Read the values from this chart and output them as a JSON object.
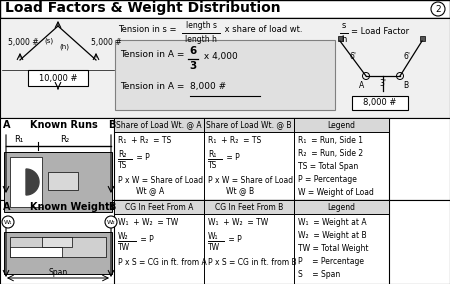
{
  "title": "Load Factors & Weight Distribution",
  "page_num": "2",
  "top_section": {
    "sling_label1": "5,000 #",
    "sling_label2": "5,000 #",
    "sling_s": "(s)",
    "sling_h": "(h)",
    "load_label": "10,000 #",
    "formula1_pre": "Tension in s = ",
    "formula1_num": "length s",
    "formula1_den": "length h",
    "formula1_post": " x share of load wt.",
    "lf_num": "s",
    "lf_den": "h",
    "lf_eq": "= Load Factor",
    "ten_a_pre": "Tension in A = ",
    "ten_a_num": "6",
    "ten_a_den": "3",
    "ten_a_post": " x 4,000",
    "ten_a_result": "Tension in A = ",
    "ten_a_result2": "8,000 #",
    "dist_6a": "6'",
    "dist_3": "3'",
    "dist_6b": "6'",
    "pt_a": "A",
    "pt_b": "B",
    "box_8000": "8,000 #"
  },
  "known_runs": {
    "label": "Known Runs",
    "pt_a": "A",
    "pt_b": "B",
    "col1_hdr": "Share of Load Wt. @ A",
    "col2_hdr": "Share of Load Wt. @ B",
    "col3_hdr": "Legend",
    "c1l1": "R₁  + R₂  = TS",
    "c1l2n": "R₂",
    "c1l2d": "TS",
    "c1l2eq": " = P",
    "c1l3": "P x W = Share of Load",
    "c1l3b": "Wt @ A",
    "c2l1": "R₁  + R₂  = TS",
    "c2l2n": "R₁",
    "c2l2d": "TS",
    "c2l2eq": " = P",
    "c2l3": "P x W = Share of Load",
    "c2l3b": "Wt @ B",
    "leg1": "R₁  = Run, Side 1",
    "leg2": "R₂  = Run, Side 2",
    "leg3": "TS = Total Span",
    "leg4": "P = Percentage",
    "leg5": "W = Weight of Load"
  },
  "known_weights": {
    "label": "Known Weights",
    "pt_a": "A",
    "pt_b": "B",
    "w1": "W₁",
    "w2": "W₂",
    "span": "Span",
    "col1_hdr": "CG In Feet From A",
    "col2_hdr": "CG In Feet From B",
    "col3_hdr": "Legend",
    "c1l1": "W₁  + W₂  = TW",
    "c1l2n": "W₂",
    "c1l2d": "TW",
    "c1l2eq": " = P",
    "c1l3": "P x S = CG in ft. from A",
    "c2l1": "W₁  + W₂  = TW",
    "c2l2n": "W₁",
    "c2l2d": "TW",
    "c2l2eq": " = P",
    "c2l3": "P x S = CG in ft. from B",
    "leg1": "W₁  = Weight at A",
    "leg2": "W₂  = Weight at B",
    "leg3": "TW = Total Weight",
    "leg4": "P    = Percentage",
    "leg5": "S    = Span"
  }
}
